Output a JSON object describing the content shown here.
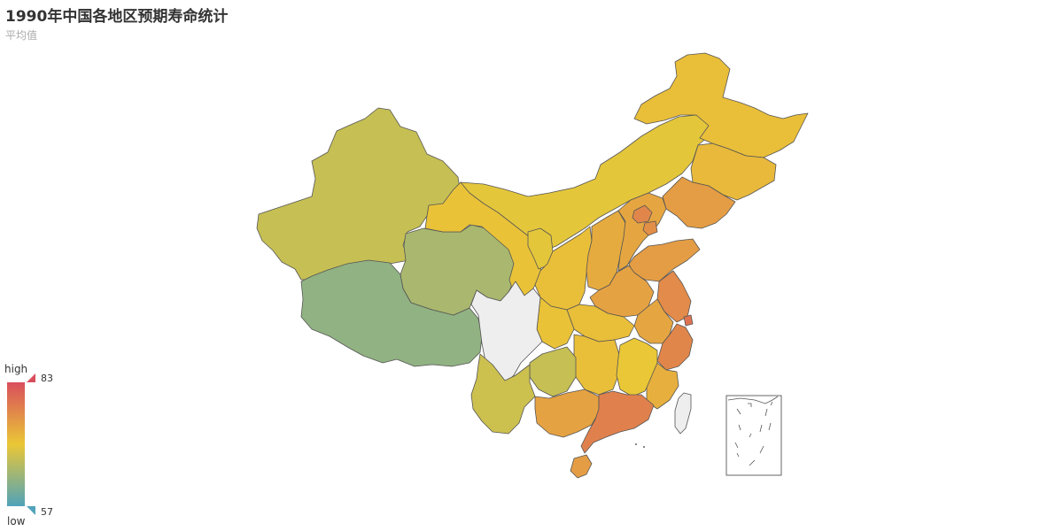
{
  "chart_data": {
    "type": "choropleth-map",
    "title": "1990年中国各地区预期寿命统计",
    "subtitle": "平均值",
    "visual_map": {
      "min": 57,
      "max": 83,
      "high_text": "high",
      "low_text": "low",
      "colors": [
        "#50a3ba",
        "#eac736",
        "#d94e5d"
      ]
    },
    "no_data_color": "#eeeeee",
    "regions": [
      {
        "name": "新疆",
        "value": 67.0
      },
      {
        "name": "西藏",
        "value": 62.5
      },
      {
        "name": "青海",
        "value": 64.5
      },
      {
        "name": "甘肃",
        "value": 70.5
      },
      {
        "name": "内蒙古",
        "value": 69.5
      },
      {
        "name": "黑龙江",
        "value": 71.0
      },
      {
        "name": "吉林",
        "value": 71.5
      },
      {
        "name": "辽宁",
        "value": 74.5
      },
      {
        "name": "宁夏",
        "value": 69.5
      },
      {
        "name": "陕西",
        "value": 71.0
      },
      {
        "name": "山西",
        "value": 73.0
      },
      {
        "name": "河北",
        "value": 73.5
      },
      {
        "name": "北京",
        "value": 77.0
      },
      {
        "name": "天津",
        "value": 76.0
      },
      {
        "name": "山东",
        "value": 74.5
      },
      {
        "name": "河南",
        "value": 74.0
      },
      {
        "name": "江苏",
        "value": 76.5
      },
      {
        "name": "上海",
        "value": 79.0
      },
      {
        "name": "安徽",
        "value": 73.5
      },
      {
        "name": "浙江",
        "value": 77.0
      },
      {
        "name": "湖北",
        "value": 71.0
      },
      {
        "name": "重庆",
        "value": 70.5
      },
      {
        "name": "湖南",
        "value": 71.0
      },
      {
        "name": "江西",
        "value": 70.0
      },
      {
        "name": "福建",
        "value": 72.5
      },
      {
        "name": "贵州",
        "value": 67.0
      },
      {
        "name": "云南",
        "value": 67.5
      },
      {
        "name": "广西",
        "value": 74.0
      },
      {
        "name": "广东",
        "value": 77.5
      },
      {
        "name": "海南",
        "value": 74.5
      },
      {
        "name": "四川",
        "value": null
      },
      {
        "name": "台湾",
        "value": null
      }
    ]
  }
}
